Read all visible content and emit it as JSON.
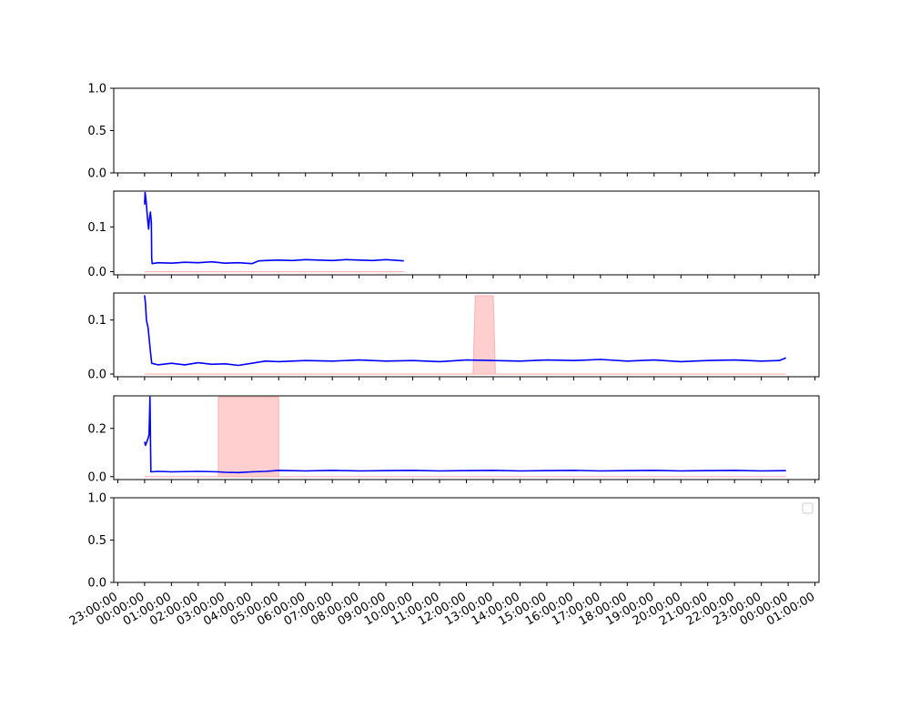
{
  "chart_data": [
    {
      "type": "line",
      "title": "",
      "xlabel": "",
      "ylabel": "",
      "ylim": [
        0,
        1
      ],
      "yticks": [
        "0.0",
        "0.5",
        "1.0"
      ],
      "series": [],
      "bands": []
    },
    {
      "type": "line",
      "title": "",
      "xlabel": "",
      "ylabel": "",
      "ylim": [
        -0.007,
        0.18
      ],
      "yticks": [
        "0.0",
        "0.1"
      ],
      "series": [
        {
          "color": "#0000ff",
          "points": [
            [
              "00:00:00",
              0.15
            ],
            [
              "00:01:00",
              0.177
            ],
            [
              "00:02:00",
              0.17
            ],
            [
              "00:04:00",
              0.15
            ],
            [
              "00:07:00",
              0.115
            ],
            [
              "00:09:00",
              0.095
            ],
            [
              "00:11:00",
              0.12
            ],
            [
              "00:13:00",
              0.133
            ],
            [
              "00:15:00",
              0.11
            ],
            [
              "00:16:00",
              0.03
            ],
            [
              "00:17:00",
              0.018
            ],
            [
              "00:30:00",
              0.02
            ],
            [
              "01:00:00",
              0.019
            ],
            [
              "01:30:00",
              0.021
            ],
            [
              "02:00:00",
              0.02
            ],
            [
              "02:30:00",
              0.022
            ],
            [
              "03:00:00",
              0.019
            ],
            [
              "03:30:00",
              0.02
            ],
            [
              "04:00:00",
              0.018
            ],
            [
              "04:15:00",
              0.024
            ],
            [
              "04:30:00",
              0.025
            ],
            [
              "05:00:00",
              0.026
            ],
            [
              "05:30:00",
              0.025
            ],
            [
              "06:00:00",
              0.027
            ],
            [
              "06:30:00",
              0.026
            ],
            [
              "07:00:00",
              0.025
            ],
            [
              "07:30:00",
              0.027
            ],
            [
              "08:00:00",
              0.026
            ],
            [
              "08:30:00",
              0.025
            ],
            [
              "09:00:00",
              0.027
            ],
            [
              "09:30:00",
              0.025
            ],
            [
              "09:40:00",
              0.024
            ]
          ]
        },
        {
          "color": "#ffb6b6",
          "points": [
            [
              "00:00:00",
              0.0
            ],
            [
              "09:40:00",
              0.0
            ]
          ]
        }
      ],
      "bands": []
    },
    {
      "type": "line",
      "title": "",
      "xlabel": "",
      "ylabel": "",
      "ylim": [
        -0.005,
        0.15
      ],
      "yticks": [
        "0.0",
        "0.1"
      ],
      "series": [
        {
          "color": "#0000ff",
          "points": [
            [
              "00:00:00",
              0.146
            ],
            [
              "00:02:00",
              0.13
            ],
            [
              "00:04:00",
              0.1
            ],
            [
              "00:08:00",
              0.085
            ],
            [
              "00:12:00",
              0.05
            ],
            [
              "00:16:00",
              0.02
            ],
            [
              "00:30:00",
              0.017
            ],
            [
              "01:00:00",
              0.02
            ],
            [
              "01:30:00",
              0.017
            ],
            [
              "02:00:00",
              0.021
            ],
            [
              "02:30:00",
              0.018
            ],
            [
              "03:00:00",
              0.019
            ],
            [
              "03:30:00",
              0.016
            ],
            [
              "04:00:00",
              0.02
            ],
            [
              "04:30:00",
              0.024
            ],
            [
              "05:00:00",
              0.023
            ],
            [
              "06:00:00",
              0.025
            ],
            [
              "07:00:00",
              0.024
            ],
            [
              "08:00:00",
              0.026
            ],
            [
              "09:00:00",
              0.024
            ],
            [
              "10:00:00",
              0.025
            ],
            [
              "11:00:00",
              0.023
            ],
            [
              "12:00:00",
              0.026
            ],
            [
              "13:00:00",
              0.025
            ],
            [
              "14:00:00",
              0.024
            ],
            [
              "15:00:00",
              0.026
            ],
            [
              "16:00:00",
              0.025
            ],
            [
              "17:00:00",
              0.027
            ],
            [
              "18:00:00",
              0.024
            ],
            [
              "19:00:00",
              0.026
            ],
            [
              "20:00:00",
              0.023
            ],
            [
              "21:00:00",
              0.025
            ],
            [
              "22:00:00",
              0.026
            ],
            [
              "23:00:00",
              0.024
            ],
            [
              "23:40:00",
              0.025
            ],
            [
              "23:55:00",
              0.03
            ]
          ]
        },
        {
          "color": "#ffb6b6",
          "points": [
            [
              "00:00:00",
              0.0
            ],
            [
              "23:55:00",
              0.0
            ]
          ]
        }
      ],
      "bands": [
        {
          "color": "#ffcccc",
          "x": [
            "12:15:00",
            "12:20:00",
            "13:00:00",
            "13:05:00"
          ],
          "y": [
            0.0,
            0.145,
            0.145,
            0.0
          ]
        }
      ]
    },
    {
      "type": "line",
      "title": "",
      "xlabel": "",
      "ylabel": "",
      "ylim": [
        -0.012,
        0.335
      ],
      "yticks": [
        "0.0",
        "0.2"
      ],
      "series": [
        {
          "color": "#0000ff",
          "points": [
            [
              "00:00:00",
              0.145
            ],
            [
              "00:02:00",
              0.13
            ],
            [
              "00:04:00",
              0.14
            ],
            [
              "00:08:00",
              0.16
            ],
            [
              "00:10:00",
              0.175
            ],
            [
              "00:12:00",
              0.33
            ],
            [
              "00:14:00",
              0.02
            ],
            [
              "00:30:00",
              0.022
            ],
            [
              "01:00:00",
              0.02
            ],
            [
              "02:00:00",
              0.022
            ],
            [
              "02:45:00",
              0.02
            ],
            [
              "03:00:00",
              0.018
            ],
            [
              "03:30:00",
              0.017
            ],
            [
              "04:00:00",
              0.02
            ],
            [
              "04:30:00",
              0.022
            ],
            [
              "05:00:00",
              0.026
            ],
            [
              "06:00:00",
              0.024
            ],
            [
              "07:00:00",
              0.026
            ],
            [
              "08:00:00",
              0.024
            ],
            [
              "09:00:00",
              0.025
            ],
            [
              "10:00:00",
              0.026
            ],
            [
              "11:00:00",
              0.024
            ],
            [
              "12:00:00",
              0.025
            ],
            [
              "13:00:00",
              0.026
            ],
            [
              "14:00:00",
              0.024
            ],
            [
              "15:00:00",
              0.025
            ],
            [
              "16:00:00",
              0.026
            ],
            [
              "17:00:00",
              0.024
            ],
            [
              "18:00:00",
              0.025
            ],
            [
              "19:00:00",
              0.026
            ],
            [
              "20:00:00",
              0.024
            ],
            [
              "21:00:00",
              0.025
            ],
            [
              "22:00:00",
              0.026
            ],
            [
              "23:00:00",
              0.024
            ],
            [
              "23:55:00",
              0.025
            ]
          ]
        },
        {
          "color": "#ffb6b6",
          "points": [
            [
              "00:00:00",
              0.0
            ],
            [
              "23:55:00",
              0.0
            ]
          ]
        }
      ],
      "bands": [
        {
          "color": "#ffcccc",
          "x": [
            "02:45:00",
            "02:45:00",
            "05:00:00",
            "05:00:00"
          ],
          "y": [
            0.0,
            0.33,
            0.33,
            0.0
          ]
        }
      ]
    },
    {
      "type": "line",
      "title": "",
      "xlabel": "",
      "ylabel": "",
      "ylim": [
        0,
        1
      ],
      "yticks": [
        "0.0",
        "0.5",
        "1.0"
      ],
      "legend": "top-right",
      "series": [],
      "bands": []
    }
  ],
  "x_axis": {
    "range_hours": [
      -1.15,
      25.15
    ],
    "tick_labels": [
      "23:00:00",
      "00:00:00",
      "01:00:00",
      "02:00:00",
      "03:00:00",
      "04:00:00",
      "05:00:00",
      "06:00:00",
      "07:00:00",
      "08:00:00",
      "09:00:00",
      "10:00:00",
      "11:00:00",
      "12:00:00",
      "13:00:00",
      "14:00:00",
      "15:00:00",
      "16:00:00",
      "17:00:00",
      "18:00:00",
      "19:00:00",
      "20:00:00",
      "21:00:00",
      "22:00:00",
      "23:00:00",
      "00:00:00",
      "01:00:00"
    ]
  }
}
